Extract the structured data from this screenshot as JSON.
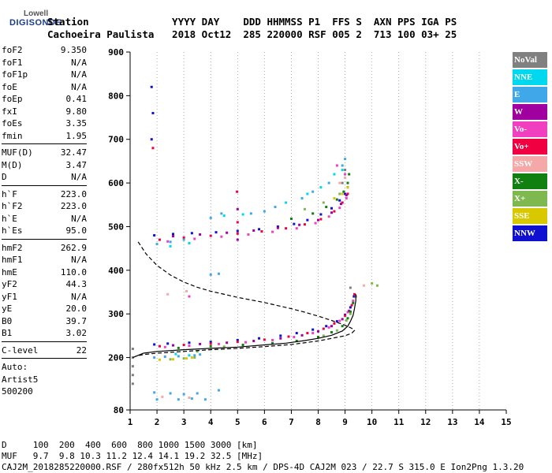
{
  "logo": {
    "line1": "Lowell",
    "line2": "DIGISONDE"
  },
  "header": {
    "line1": "Station              YYYY DAY    DDD HHMMSS P1  FFS S  AXN PPS IGA PS",
    "line2": "Cachoeira Paulista   2018 Oct12  285 220000 RSF 005 2  713 100 03+ 25"
  },
  "params": {
    "group1": [
      {
        "name": "foF2",
        "value": "9.350"
      },
      {
        "name": "foF1",
        "value": "N/A"
      },
      {
        "name": "foF1p",
        "value": "N/A"
      },
      {
        "name": "foE",
        "value": "N/A"
      },
      {
        "name": "foEp",
        "value": "0.41"
      },
      {
        "name": "fxI",
        "value": "9.80"
      },
      {
        "name": "foEs",
        "value": "3.35"
      },
      {
        "name": "fmin",
        "value": "1.95"
      }
    ],
    "group2": [
      {
        "name": "MUF(D)",
        "value": "32.47"
      },
      {
        "name": "M(D)",
        "value": "3.47"
      },
      {
        "name": "D",
        "value": "N/A"
      }
    ],
    "group3": [
      {
        "name": "h`F",
        "value": "223.0"
      },
      {
        "name": "h`F2",
        "value": "223.0"
      },
      {
        "name": "h`E",
        "value": "N/A"
      },
      {
        "name": "h`Es",
        "value": "95.0"
      }
    ],
    "group4": [
      {
        "name": "hmF2",
        "value": "262.9"
      },
      {
        "name": "hmF1",
        "value": "N/A"
      },
      {
        "name": "hmE",
        "value": "110.0"
      },
      {
        "name": "yF2",
        "value": "44.3"
      },
      {
        "name": "yF1",
        "value": "N/A"
      },
      {
        "name": "yE",
        "value": "20.0"
      },
      {
        "name": "B0",
        "value": "39.7"
      },
      {
        "name": "B1",
        "value": "3.02"
      }
    ],
    "group5": [
      {
        "name": "C-level",
        "value": "22"
      }
    ],
    "extra": [
      "Auto:",
      "Artist5",
      "500200"
    ]
  },
  "legend": [
    {
      "label": "NoVal",
      "color": "#808080"
    },
    {
      "label": "NNE",
      "color": "#00d8f0"
    },
    {
      "label": "E",
      "color": "#40a8e8"
    },
    {
      "label": "W",
      "color": "#a000a0"
    },
    {
      "label": "Vo-",
      "color": "#f040c0"
    },
    {
      "label": "Vo+",
      "color": "#f00040"
    },
    {
      "label": "SSW",
      "color": "#f4a8a8"
    },
    {
      "label": "X-",
      "color": "#108010"
    },
    {
      "label": "X+",
      "color": "#80b850"
    },
    {
      "label": "SSE",
      "color": "#d8c800"
    },
    {
      "label": "NNW",
      "color": "#1010d0"
    }
  ],
  "footer": {
    "line1": "D     100  200  400  600  800 1000 1500 3000 [km]",
    "line2": "MUF   9.7  9.8 10.3 11.2 12.4 14.1 19.2 32.5 [MHz]",
    "line3": "CAJ2M_2018285220000.RSF / 280fx512h 50 kHz 2.5 km / DPS-4D CAJ2M 023 / 22.7 S 315.0 E Ion2Png 1.3.20"
  },
  "chart_data": {
    "type": "scatter",
    "xlim": [
      1,
      15
    ],
    "ylim": [
      80,
      900
    ],
    "xticks": [
      1,
      2,
      3,
      4,
      5,
      6,
      7,
      8,
      9,
      10,
      11,
      12,
      13,
      14,
      15
    ],
    "yticks": [
      80,
      200,
      300,
      400,
      500,
      600,
      700,
      800,
      900
    ],
    "grid": "vertical dotted",
    "series": [
      {
        "color": "#1010d0",
        "points": [
          [
            1.9,
            230
          ],
          [
            2.4,
            232
          ],
          [
            3.2,
            234
          ],
          [
            4.0,
            236
          ],
          [
            5.0,
            240
          ],
          [
            5.8,
            244
          ],
          [
            6.6,
            250
          ],
          [
            7.2,
            256
          ],
          [
            7.8,
            264
          ],
          [
            8.3,
            272
          ],
          [
            8.7,
            283
          ],
          [
            9.0,
            298
          ],
          [
            9.2,
            315
          ],
          [
            9.33,
            340
          ],
          [
            1.9,
            480
          ],
          [
            2.6,
            483
          ],
          [
            3.3,
            485
          ],
          [
            4.2,
            487
          ],
          [
            5.0,
            490
          ],
          [
            5.8,
            494
          ],
          [
            6.5,
            500
          ],
          [
            7.1,
            506
          ],
          [
            7.6,
            515
          ],
          [
            8.1,
            528
          ],
          [
            8.5,
            542
          ],
          [
            8.8,
            560
          ],
          [
            9.0,
            575
          ],
          [
            9.1,
            590
          ],
          [
            1.8,
            820
          ],
          [
            1.85,
            760
          ],
          [
            1.8,
            700
          ]
        ]
      },
      {
        "color": "#f00040",
        "points": [
          [
            2.1,
            226
          ],
          [
            3.0,
            229
          ],
          [
            4.0,
            232
          ],
          [
            5.0,
            236
          ],
          [
            6.0,
            241
          ],
          [
            6.9,
            248
          ],
          [
            7.6,
            256
          ],
          [
            8.2,
            266
          ],
          [
            8.6,
            278
          ],
          [
            9.0,
            296
          ],
          [
            9.25,
            320
          ],
          [
            9.35,
            345
          ],
          [
            2.1,
            470
          ],
          [
            3.0,
            475
          ],
          [
            4.0,
            479
          ],
          [
            5.0,
            484
          ],
          [
            5.9,
            489
          ],
          [
            6.8,
            496
          ],
          [
            7.5,
            505
          ],
          [
            8.1,
            517
          ],
          [
            8.6,
            535
          ],
          [
            8.9,
            555
          ],
          [
            9.1,
            575
          ],
          [
            4.98,
            580
          ],
          [
            5.0,
            510
          ],
          [
            1.85,
            680
          ]
        ]
      },
      {
        "color": "#f040c0",
        "points": [
          [
            2.3,
            224
          ],
          [
            3.2,
            227
          ],
          [
            4.3,
            231
          ],
          [
            5.3,
            235
          ],
          [
            6.3,
            240
          ],
          [
            7.1,
            247
          ],
          [
            7.8,
            256
          ],
          [
            8.4,
            269
          ],
          [
            8.8,
            284
          ],
          [
            9.1,
            304
          ],
          [
            9.3,
            330
          ],
          [
            2.4,
            466
          ],
          [
            3.4,
            472
          ],
          [
            4.4,
            477
          ],
          [
            5.4,
            482
          ],
          [
            6.3,
            488
          ],
          [
            7.2,
            496
          ],
          [
            7.9,
            508
          ],
          [
            8.4,
            523
          ],
          [
            8.8,
            543
          ],
          [
            9.05,
            565
          ],
          [
            9.0,
            620
          ],
          [
            8.7,
            640
          ],
          [
            3.2,
            340
          ]
        ]
      },
      {
        "color": "#a000a0",
        "points": [
          [
            2.6,
            228
          ],
          [
            3.6,
            231
          ],
          [
            4.6,
            234
          ],
          [
            5.6,
            238
          ],
          [
            6.6,
            244
          ],
          [
            7.4,
            251
          ],
          [
            8.0,
            260
          ],
          [
            8.5,
            272
          ],
          [
            8.9,
            288
          ],
          [
            9.15,
            307
          ],
          [
            2.6,
            478
          ],
          [
            3.6,
            482
          ],
          [
            4.6,
            486
          ],
          [
            5.6,
            491
          ],
          [
            6.5,
            497
          ],
          [
            7.3,
            504
          ],
          [
            8.0,
            515
          ],
          [
            8.5,
            532
          ],
          [
            8.85,
            552
          ],
          [
            9.05,
            572
          ],
          [
            5.0,
            470
          ],
          [
            5.0,
            540
          ]
        ]
      },
      {
        "color": "#108010",
        "points": [
          [
            2.8,
            222
          ],
          [
            4.0,
            226
          ],
          [
            5.2,
            229
          ],
          [
            6.3,
            233
          ],
          [
            7.2,
            238
          ],
          [
            8.0,
            247
          ],
          [
            8.5,
            258
          ],
          [
            8.9,
            272
          ],
          [
            9.1,
            290
          ],
          [
            9.2,
            305
          ],
          [
            9.3,
            325
          ],
          [
            7.0,
            518
          ],
          [
            7.8,
            530
          ],
          [
            8.3,
            545
          ],
          [
            8.7,
            562
          ],
          [
            8.95,
            580
          ],
          [
            9.1,
            600
          ],
          [
            9.15,
            620
          ]
        ]
      },
      {
        "color": "#80b850",
        "points": [
          [
            2.5,
            196
          ],
          [
            3.0,
            198
          ],
          [
            3.4,
            200
          ],
          [
            3.5,
            214
          ],
          [
            4.5,
            225
          ],
          [
            8.2,
            250
          ],
          [
            8.7,
            262
          ],
          [
            9.05,
            285
          ],
          [
            9.2,
            300
          ],
          [
            10.0,
            370
          ],
          [
            10.2,
            365
          ],
          [
            7.5,
            540
          ],
          [
            8.2,
            555
          ],
          [
            8.8,
            575
          ]
        ]
      },
      {
        "color": "#d8c800",
        "points": [
          [
            2.1,
            195
          ],
          [
            2.6,
            196
          ],
          [
            3.1,
            198
          ],
          [
            3.3,
            200
          ],
          [
            8.9,
            575
          ],
          [
            9.1,
            590
          ],
          [
            8.6,
            565
          ]
        ]
      },
      {
        "color": "#40a8e8",
        "points": [
          [
            1.9,
            200
          ],
          [
            2.3,
            202
          ],
          [
            2.8,
            203
          ],
          [
            3.4,
            205
          ],
          [
            3.6,
            207
          ],
          [
            2.0,
            460
          ],
          [
            2.5,
            465
          ],
          [
            3.0,
            470
          ],
          [
            4.0,
            520
          ],
          [
            4.4,
            530
          ],
          [
            5.5,
            530
          ],
          [
            6.0,
            535
          ],
          [
            6.4,
            545
          ],
          [
            7.4,
            565
          ],
          [
            7.8,
            580
          ],
          [
            8.4,
            600
          ],
          [
            8.9,
            640
          ],
          [
            9.0,
            655
          ],
          [
            4.0,
            390
          ],
          [
            4.3,
            392
          ],
          [
            1.9,
            120
          ],
          [
            2.5,
            118
          ],
          [
            3.0,
            116
          ],
          [
            3.5,
            118
          ],
          [
            4.3,
            125
          ],
          [
            2.0,
            104
          ],
          [
            2.8,
            104
          ],
          [
            3.3,
            106
          ],
          [
            3.8,
            104
          ]
        ]
      },
      {
        "color": "#00d8f0",
        "points": [
          [
            2.5,
            455
          ],
          [
            3.2,
            462
          ],
          [
            4.5,
            525
          ],
          [
            5.2,
            528
          ],
          [
            6.8,
            555
          ],
          [
            7.6,
            575
          ],
          [
            8.1,
            590
          ],
          [
            8.6,
            620
          ],
          [
            8.9,
            630
          ],
          [
            3.2,
            205
          ],
          [
            2.7,
            208
          ]
        ]
      },
      {
        "color": "#f4a8a8",
        "points": [
          [
            3.1,
            352
          ],
          [
            2.4,
            345
          ],
          [
            8.8,
            600
          ],
          [
            9.0,
            612
          ],
          [
            9.7,
            365
          ],
          [
            2.2,
            110
          ],
          [
            3.2,
            108
          ]
        ]
      },
      {
        "color": "#808080",
        "points": [
          [
            1.1,
            220
          ],
          [
            1.1,
            200
          ],
          [
            1.1,
            180
          ],
          [
            1.1,
            160
          ],
          [
            1.1,
            140
          ],
          [
            9.2,
            360
          ],
          [
            9.4,
            340
          ],
          [
            8.9,
            600
          ],
          [
            9.0,
            630
          ]
        ]
      }
    ],
    "curves": [
      {
        "style": "dashed",
        "points": [
          [
            1.3,
            465
          ],
          [
            1.6,
            437
          ],
          [
            2.0,
            411
          ],
          [
            2.5,
            389
          ],
          [
            3.0,
            373
          ],
          [
            3.5,
            361
          ],
          [
            4.0,
            352
          ],
          [
            5.0,
            338
          ],
          [
            6.0,
            326
          ],
          [
            7.0,
            312
          ],
          [
            7.5,
            304
          ],
          [
            8.0,
            295
          ],
          [
            8.5,
            285
          ],
          [
            9.0,
            274
          ],
          [
            9.25,
            267
          ],
          [
            9.35,
            262
          ],
          [
            9.25,
            256
          ],
          [
            9.0,
            250
          ],
          [
            8.0,
            238
          ],
          [
            7.0,
            230
          ],
          [
            6.0,
            225
          ],
          [
            5.0,
            221
          ],
          [
            4.0,
            218
          ],
          [
            3.0,
            214
          ],
          [
            2.0,
            210
          ],
          [
            1.5,
            207
          ],
          [
            1.2,
            203
          ]
        ]
      },
      {
        "style": "solid",
        "points": [
          [
            1.1,
            200
          ],
          [
            1.5,
            210
          ],
          [
            2.0,
            214
          ],
          [
            3.0,
            218
          ],
          [
            4.0,
            221
          ],
          [
            5.0,
            224
          ],
          [
            6.0,
            229
          ],
          [
            6.8,
            233
          ],
          [
            7.5,
            239
          ],
          [
            8.0,
            244
          ],
          [
            8.5,
            251
          ],
          [
            8.9,
            261
          ],
          [
            9.1,
            272
          ],
          [
            9.2,
            283
          ],
          [
            9.3,
            297
          ],
          [
            9.35,
            312
          ],
          [
            9.4,
            330
          ],
          [
            9.4,
            345
          ]
        ]
      }
    ]
  }
}
